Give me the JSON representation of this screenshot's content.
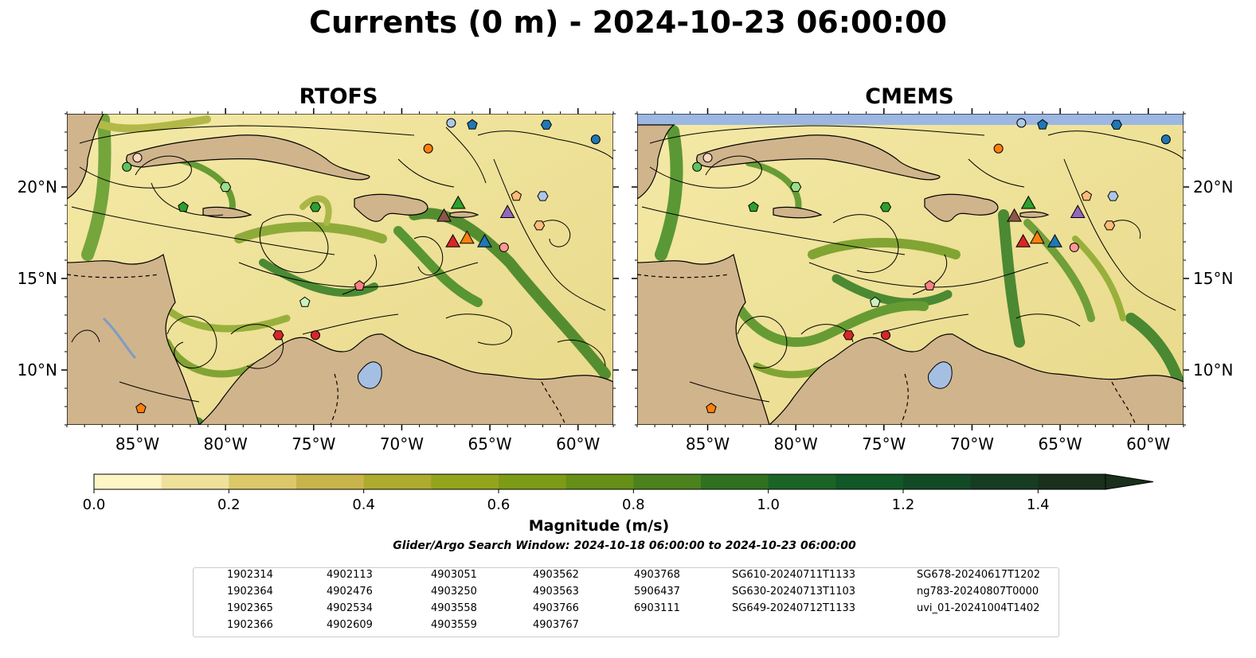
{
  "title": "Currents (0 m) - 2024-10-23 06:00:00",
  "panels": [
    {
      "title": "RTOFS"
    },
    {
      "title": "CMEMS"
    }
  ],
  "lat_labels": [
    "20°N",
    "15°N",
    "10°N"
  ],
  "lon_labels": [
    "85°W",
    "80°W",
    "75°W",
    "70°W",
    "65°W",
    "60°W"
  ],
  "lat_values": [
    20,
    15,
    10
  ],
  "lon_values": [
    -85,
    -80,
    -75,
    -70,
    -65,
    -60
  ],
  "map_extent": {
    "lon": [
      -89,
      -58
    ],
    "lat": [
      7,
      24
    ]
  },
  "colorbar": {
    "label": "Magnitude (m/s)",
    "ticks": [
      "0.0",
      "0.2",
      "0.4",
      "0.6",
      "0.8",
      "1.0",
      "1.2",
      "1.4"
    ],
    "tick_values": [
      0.0,
      0.2,
      0.4,
      0.6,
      0.8,
      1.0,
      1.2,
      1.4
    ],
    "range": [
      0.0,
      1.5
    ],
    "colors": [
      "#fdf5c4",
      "#efe19a",
      "#dcc869",
      "#c9b44b",
      "#aeac2e",
      "#94a41c",
      "#7e9b16",
      "#658f17",
      "#4c821b",
      "#2f711f",
      "#1a6426",
      "#115728",
      "#134a26",
      "#163c22",
      "#19301c"
    ]
  },
  "search_window": "Glider/Argo Search Window: 2024-10-18 06:00:00 to 2024-10-23 06:00:00",
  "legend_columns": [
    [
      {
        "label": "1902314",
        "marker": "circle",
        "color": "#1f77b4"
      },
      {
        "label": "1902364",
        "marker": "hexagon",
        "color": "#1f77b4"
      },
      {
        "label": "1902365",
        "marker": "pentagon",
        "color": "#1f77b4"
      },
      {
        "label": "1902366",
        "marker": "circle",
        "color": "#aec7e8"
      }
    ],
    [
      {
        "label": "4902113",
        "marker": "hexagon",
        "color": "#aec7e8"
      },
      {
        "label": "4902476",
        "marker": "pentagon",
        "color": "#ff7f0e"
      },
      {
        "label": "4902534",
        "marker": "circle",
        "color": "#ff7f0e"
      },
      {
        "label": "4902609",
        "marker": "hexagon",
        "color": "#ffbb78"
      }
    ],
    [
      {
        "label": "4903051",
        "marker": "pentagon",
        "color": "#ffbb78"
      },
      {
        "label": "4903250",
        "marker": "circle",
        "color": "#fdd9c0"
      },
      {
        "label": "4903558",
        "marker": "hexagon",
        "color": "#2ca02c"
      },
      {
        "label": "4903559",
        "marker": "pentagon",
        "color": "#2ca02c"
      }
    ],
    [
      {
        "label": "4903562",
        "marker": "circle",
        "color": "#5cc45c"
      },
      {
        "label": "4903563",
        "marker": "hexagon",
        "color": "#98df8a"
      },
      {
        "label": "4903766",
        "marker": "pentagon",
        "color": "#c9f2c0"
      },
      {
        "label": "4903767",
        "marker": "circle",
        "color": "#d62728"
      }
    ],
    [
      {
        "label": "4903768",
        "marker": "hexagon",
        "color": "#d62728"
      },
      {
        "label": "5906437",
        "marker": "pentagon",
        "color": "#ff7f84"
      },
      {
        "label": "6903111",
        "marker": "circle",
        "color": "#ff9896"
      }
    ],
    [
      {
        "label": "SG610-20240711T1133",
        "marker": "triangle",
        "color": "#1f77b4"
      },
      {
        "label": "SG630-20240713T1103",
        "marker": "triangle",
        "color": "#ff7f0e"
      },
      {
        "label": "SG649-20240712T1133",
        "marker": "triangle",
        "color": "#2ca02c"
      }
    ],
    [
      {
        "label": "SG678-20240617T1202",
        "marker": "triangle",
        "color": "#d62728"
      },
      {
        "label": "ng783-20240807T0000",
        "marker": "triangle",
        "color": "#9467bd"
      },
      {
        "label": "uvi_01-20241004T1402",
        "marker": "triangle",
        "color": "#8c564b"
      }
    ]
  ],
  "platforms": [
    {
      "label": "1902314",
      "lon": -59.0,
      "lat": 22.6
    },
    {
      "label": "1902364",
      "lon": -61.8,
      "lat": 23.4
    },
    {
      "label": "1902365",
      "lon": -66.0,
      "lat": 23.4
    },
    {
      "label": "1902366",
      "lon": -67.2,
      "lat": 23.5
    },
    {
      "label": "4902113",
      "lon": -62.0,
      "lat": 19.5
    },
    {
      "label": "4902476",
      "lon": -84.8,
      "lat": 7.9
    },
    {
      "label": "4902534",
      "lon": -68.5,
      "lat": 22.1
    },
    {
      "label": "4902609",
      "lon": -62.2,
      "lat": 17.9
    },
    {
      "label": "4903051",
      "lon": -63.5,
      "lat": 19.5
    },
    {
      "label": "4903250",
      "lon": -85.0,
      "lat": 21.6
    },
    {
      "label": "4903558",
      "lon": -74.9,
      "lat": 18.9
    },
    {
      "label": "4903559",
      "lon": -82.4,
      "lat": 18.9
    },
    {
      "label": "4903562",
      "lon": -85.6,
      "lat": 21.1
    },
    {
      "label": "4903563",
      "lon": -80.0,
      "lat": 20.0
    },
    {
      "label": "4903766",
      "lon": -75.5,
      "lat": 13.7
    },
    {
      "label": "4903767",
      "lon": -74.9,
      "lat": 11.9
    },
    {
      "label": "4903768",
      "lon": -77.0,
      "lat": 11.9
    },
    {
      "label": "5906437",
      "lon": -72.4,
      "lat": 14.6
    },
    {
      "label": "6903111",
      "lon": -64.2,
      "lat": 16.7
    },
    {
      "label": "SG610-20240711T1133",
      "lon": -65.3,
      "lat": 17.0
    },
    {
      "label": "SG630-20240713T1103",
      "lon": -66.3,
      "lat": 17.2
    },
    {
      "label": "SG649-20240712T1133",
      "lon": -66.8,
      "lat": 19.1
    },
    {
      "label": "SG678-20240617T1202",
      "lon": -67.1,
      "lat": 17.0
    },
    {
      "label": "ng783-20240807T0000",
      "lon": -64.0,
      "lat": 18.6
    },
    {
      "label": "uvi_01-20241004T1402",
      "lon": -67.6,
      "lat": 18.4
    }
  ]
}
